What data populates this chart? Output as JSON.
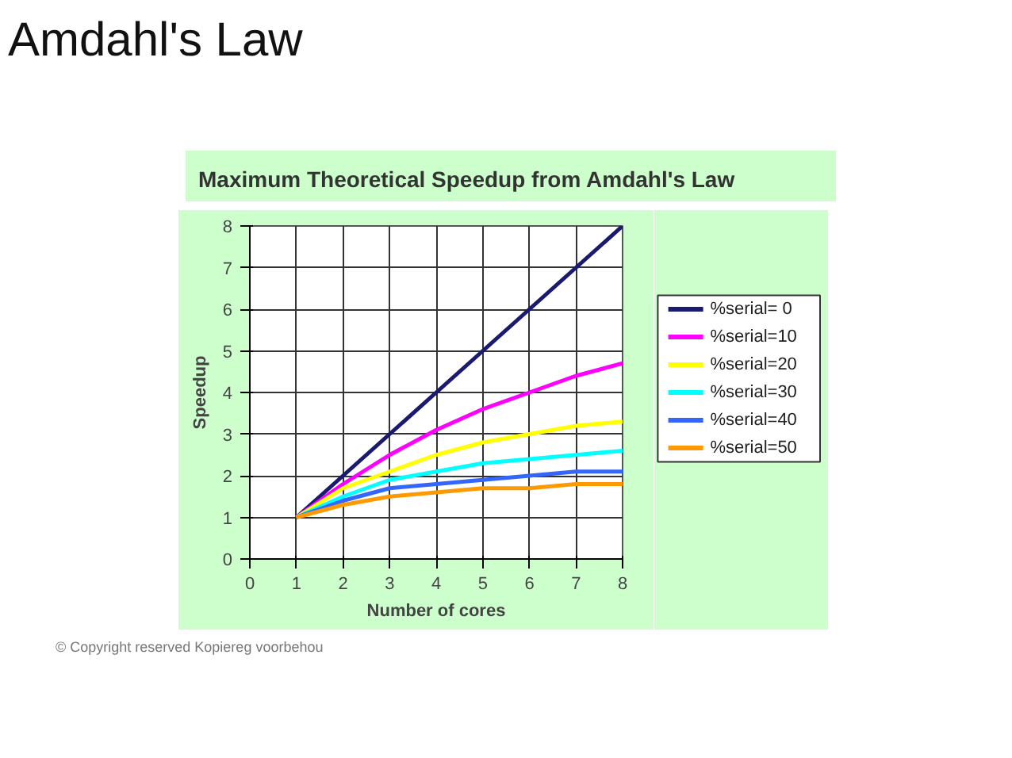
{
  "chart_data": {
    "type": "line",
    "title": "Amdahl's Law",
    "subtitle": "Maximum Theoretical Speedup from Amdahl's Law",
    "xlabel": "Number of cores",
    "ylabel": "Speedup",
    "x": [
      1,
      2,
      3,
      4,
      5,
      6,
      7,
      8
    ],
    "series": [
      {
        "name": "%serial=  0",
        "color": "#1a1a6e",
        "values": [
          1,
          2,
          3,
          4,
          5,
          6,
          7,
          8
        ]
      },
      {
        "name": "%serial=10",
        "color": "#ff00ff",
        "values": [
          1,
          1.8,
          2.5,
          3.1,
          3.6,
          4.0,
          4.4,
          4.7
        ]
      },
      {
        "name": "%serial=20",
        "color": "#ffff00",
        "values": [
          1,
          1.7,
          2.1,
          2.5,
          2.8,
          3.0,
          3.2,
          3.3
        ]
      },
      {
        "name": "%serial=30",
        "color": "#00ffff",
        "values": [
          1,
          1.5,
          1.9,
          2.1,
          2.3,
          2.4,
          2.5,
          2.6
        ]
      },
      {
        "name": "%serial=40",
        "color": "#3366ff",
        "values": [
          1,
          1.4,
          1.7,
          1.8,
          1.9,
          2.0,
          2.1,
          2.1
        ]
      },
      {
        "name": "%serial=50",
        "color": "#ff9900",
        "values": [
          1,
          1.3,
          1.5,
          1.6,
          1.7,
          1.7,
          1.8,
          1.8
        ]
      }
    ],
    "xlim": [
      0,
      8
    ],
    "ylim": [
      0,
      8
    ],
    "xticks": [
      0,
      1,
      2,
      3,
      4,
      5,
      6,
      7,
      8
    ],
    "yticks": [
      0,
      1,
      2,
      3,
      4,
      5,
      6,
      7,
      8
    ],
    "grid": true,
    "legend": "right",
    "marker": "none",
    "line_style": "solid",
    "annotations": [
      "© Copyright reserved Kopiereg voorbehou"
    ]
  }
}
